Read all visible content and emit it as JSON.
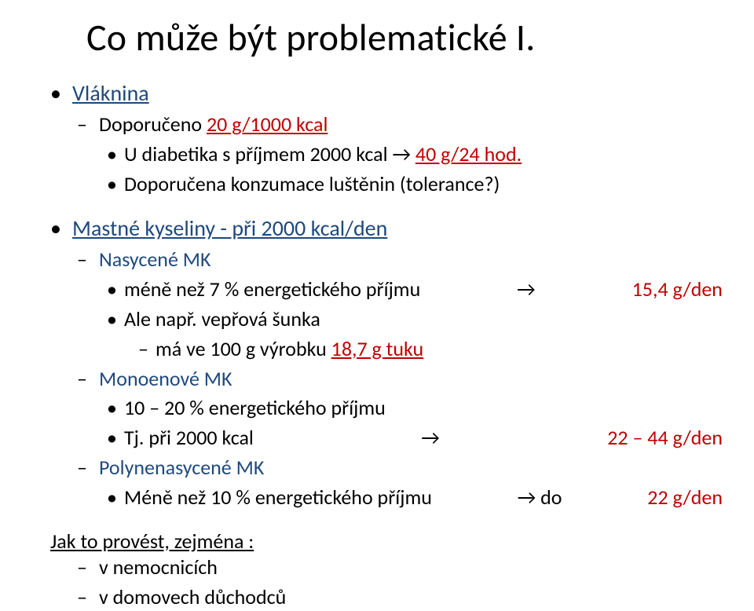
{
  "colors": {
    "black": "#000000",
    "blue": "#1f497d",
    "red": "#c00000",
    "white": "#ffffff"
  },
  "fonts": {
    "base_family": "Calibri",
    "title_size_pt": 36,
    "body_size_pt": 20
  },
  "title": "Co může být problematické I.",
  "vlaknina": {
    "label": "Vláknina",
    "rec_prefix": "Doporučeno ",
    "rec_value": "20 g/1000 kcal",
    "diab_prefix": "U diabetika s příjmem 2000 kcal → ",
    "diab_value": "40 g/24 hod.",
    "tolerance": "Doporučena konzumace luštěnin (tolerance?)"
  },
  "mk": {
    "heading": "Mastné kyseliny - při 2000 kcal/den",
    "nasycene": {
      "label": "Nasycené MK",
      "line1_left": "méně než 7 % energetického  příjmu",
      "line1_arrow": "→",
      "line1_right": "15,4 g/den",
      "ale": "Ale např. vepřová šunka",
      "sub_prefix": "má ve 100 g výrobku    ",
      "sub_value": "18,7 g tuku"
    },
    "mono": {
      "label": "Monoenové MK",
      "line1": "10 – 20 % energetického příjmu",
      "line2_left": "Tj. při 2000 kcal",
      "line2_arrow": "→",
      "line2_right": "22 – 44 g/den"
    },
    "poly": {
      "label": "Polynenasycené MK",
      "line_left": "Méně než 10 % energetického příjmu",
      "line_mid": " → do",
      "line_right": "22 g/den"
    }
  },
  "footer": {
    "lead": "Jak to provést, zejména :",
    "item1": "v nemocnicích",
    "item2": "v domovech důchodců"
  }
}
